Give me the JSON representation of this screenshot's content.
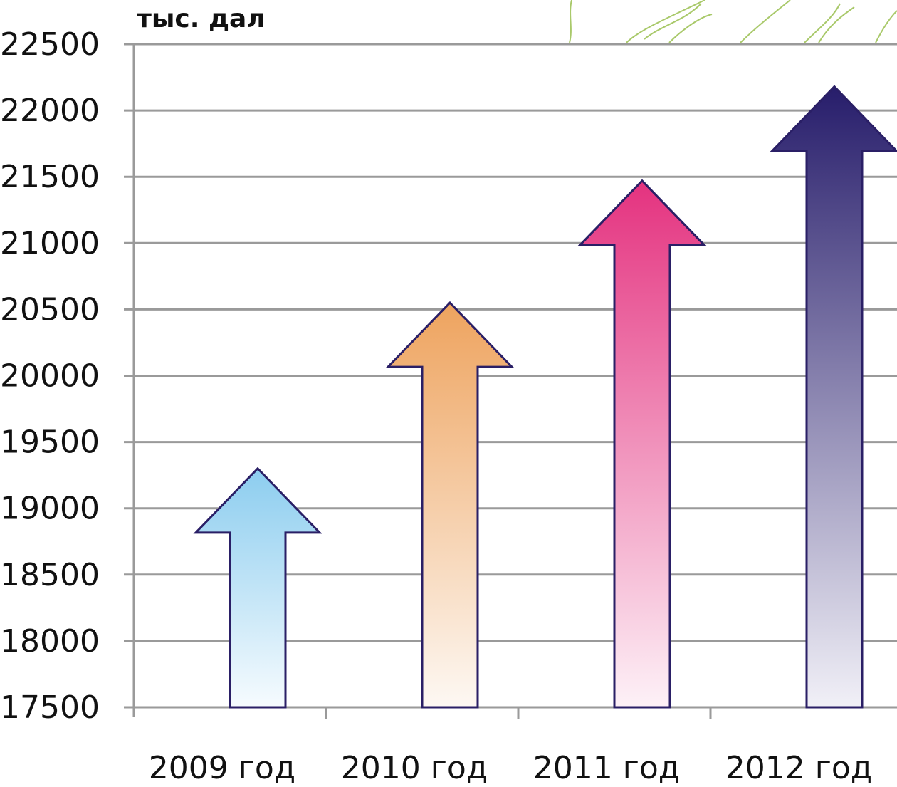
{
  "chart_data": {
    "type": "bar",
    "title": "",
    "xlabel": "",
    "ylabel": "тыс. дал",
    "categories": [
      "2009 год",
      "2010 год",
      "2011 год",
      "2012 год"
    ],
    "values": [
      19300,
      20550,
      21470,
      22180
    ],
    "ylim": [
      17500,
      22500
    ],
    "yticks": [
      17500,
      18000,
      18500,
      19000,
      19500,
      20000,
      20500,
      21000,
      21500,
      22000,
      22500
    ],
    "grid": true,
    "legend": "none",
    "mark_shape": "arrow",
    "series_colors": [
      {
        "top": "#8ccdef",
        "bottom": "#f6fbfe"
      },
      {
        "top": "#eea35e",
        "bottom": "#fdf8f3"
      },
      {
        "top": "#e4327f",
        "bottom": "#fdf1f7"
      },
      {
        "top": "#271d6b",
        "bottom": "#f1f0f7"
      }
    ],
    "arrow_outline_color": "#2a1f66"
  }
}
